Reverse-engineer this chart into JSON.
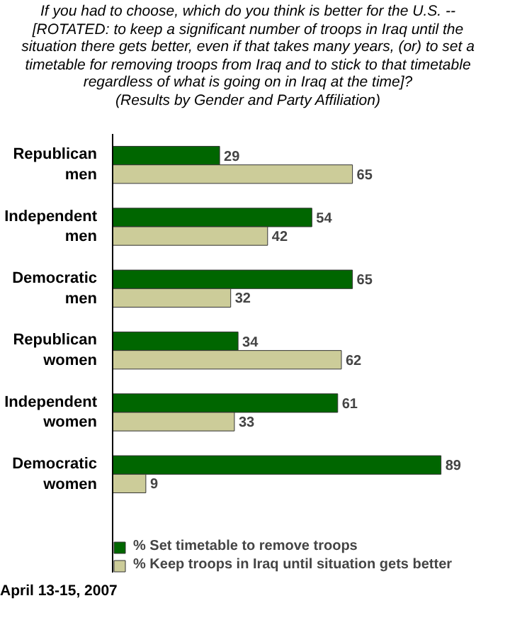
{
  "chart_data": {
    "type": "bar",
    "orientation": "horizontal",
    "title": "If you had to choose, which do you think is better for the U.S. -- [ROTATED: to keep a significant number of troops in Iraq until the situation there gets better, even if that takes many years, (or) to set a timetable for removing troops from Iraq and to stick to that timetable regardless of what is going on in Iraq at the time]?",
    "subtitle": "(Results by Gender and Party Affiliation)",
    "categories": [
      "Republican men",
      "Independent men",
      "Democratic men",
      "Republican women",
      "Independent women",
      "Democratic women"
    ],
    "series": [
      {
        "name": "% Set timetable to remove troops",
        "color": "#006600",
        "values": [
          29,
          54,
          65,
          34,
          61,
          89
        ]
      },
      {
        "name": "% Keep troops in Iraq until situation gets better",
        "color": "#cccc99",
        "values": [
          65,
          42,
          32,
          62,
          33,
          9
        ]
      }
    ],
    "data_labels": true,
    "legend": "bottom left",
    "grid": false,
    "annotations": [
      "April 13-15, 2007"
    ]
  }
}
